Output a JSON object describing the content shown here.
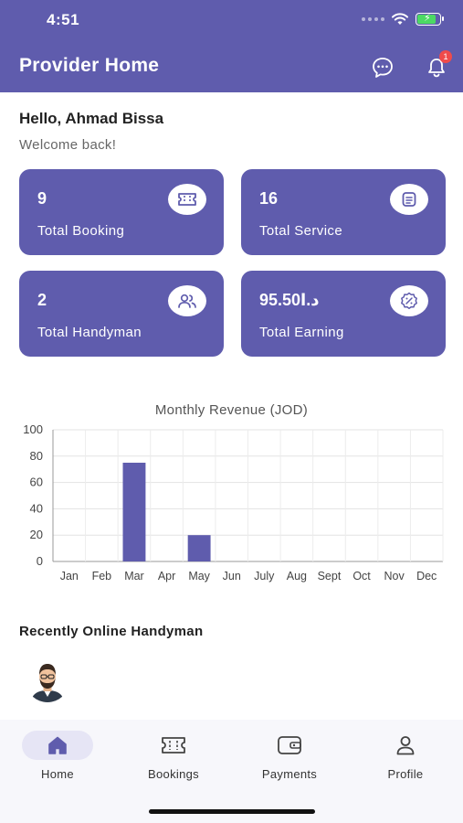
{
  "status_bar": {
    "time": "4:51"
  },
  "header": {
    "title": "Provider Home",
    "notification_count": "1"
  },
  "greeting": {
    "hello": "Hello, Ahmad Bissa",
    "welcome": "Welcome back!"
  },
  "stats": [
    {
      "value": "9",
      "label": "Total Booking",
      "icon": "ticket-icon"
    },
    {
      "value": "16",
      "label": "Total Service",
      "icon": "document-icon"
    },
    {
      "value": "2",
      "label": "Total Handyman",
      "icon": "users-icon"
    },
    {
      "value": "95.50د.ا",
      "label": "Total Earning",
      "icon": "percent-badge-icon"
    }
  ],
  "chart_data": {
    "type": "bar",
    "title": "Monthly Revenue (JOD)",
    "categories": [
      "Jan",
      "Feb",
      "Mar",
      "Apr",
      "May",
      "Jun",
      "July",
      "Aug",
      "Sept",
      "Oct",
      "Nov",
      "Dec"
    ],
    "values": [
      0,
      0,
      75,
      0,
      20,
      0,
      0,
      0,
      0,
      0,
      0,
      0
    ],
    "ylim": [
      0,
      100
    ],
    "yticks": [
      0,
      20,
      40,
      60,
      80,
      100
    ],
    "xlabel": "",
    "ylabel": "",
    "grid": true,
    "bar_color": "#5f5cad"
  },
  "recent": {
    "title": "Recently Online Handyman"
  },
  "nav": [
    {
      "label": "Home",
      "icon": "home-icon",
      "active": true
    },
    {
      "label": "Bookings",
      "icon": "ticket-icon",
      "active": false
    },
    {
      "label": "Payments",
      "icon": "wallet-icon",
      "active": false
    },
    {
      "label": "Profile",
      "icon": "person-icon",
      "active": false
    }
  ],
  "colors": {
    "primary": "#5f5cad",
    "badge": "#ef4b4b",
    "nav_active_bg": "#e6e5f5"
  }
}
